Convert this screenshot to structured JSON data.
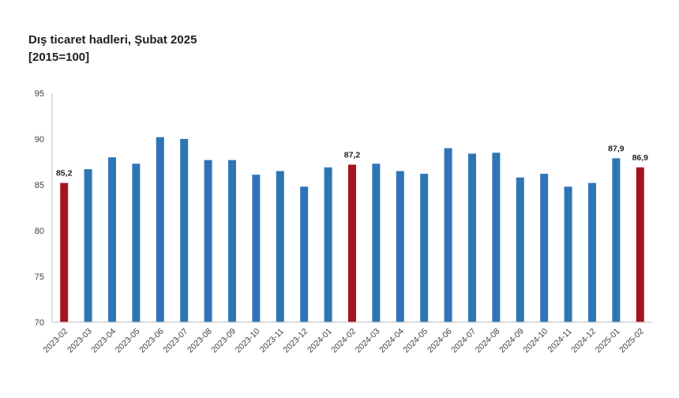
{
  "chart_data": {
    "type": "bar",
    "title": "Dış ticaret hadleri, Şubat 2025",
    "subtitle": "[2015=100]",
    "xlabel": "",
    "ylabel": "",
    "ylim": [
      70,
      95
    ],
    "yticks": [
      "70",
      "75",
      "80",
      "85",
      "90",
      "95"
    ],
    "grid": false,
    "legend": "none",
    "categories": [
      "2023-02",
      "2023-03",
      "2023-04",
      "2023-05",
      "2023-06",
      "2023-07",
      "2023-08",
      "2023-09",
      "2023-10",
      "2023-11",
      "2023-12",
      "2024-01",
      "2024-02",
      "2024-03",
      "2024-04",
      "2024-05",
      "2024-06",
      "2024-07",
      "2024-08",
      "2024-09",
      "2024-10",
      "2024-11",
      "2024-12",
      "2025-01",
      "2025-02"
    ],
    "values": [
      85.2,
      86.7,
      88.0,
      87.3,
      90.2,
      90.0,
      87.7,
      87.7,
      86.1,
      86.5,
      84.8,
      86.9,
      87.2,
      87.3,
      86.5,
      86.2,
      89.0,
      88.4,
      88.5,
      85.8,
      86.2,
      84.8,
      85.2,
      87.9,
      86.9
    ],
    "highlighted": [
      true,
      false,
      false,
      false,
      false,
      false,
      false,
      false,
      false,
      false,
      false,
      false,
      true,
      false,
      false,
      false,
      false,
      false,
      false,
      false,
      false,
      false,
      false,
      false,
      true
    ],
    "data_labels": {
      "0": "85,2",
      "12": "87,2",
      "23": "87,9",
      "24": "86,9"
    },
    "colors": {
      "default": "#2E75B6",
      "highlight": "#A5141E",
      "axis": "#BFBFBF"
    }
  }
}
